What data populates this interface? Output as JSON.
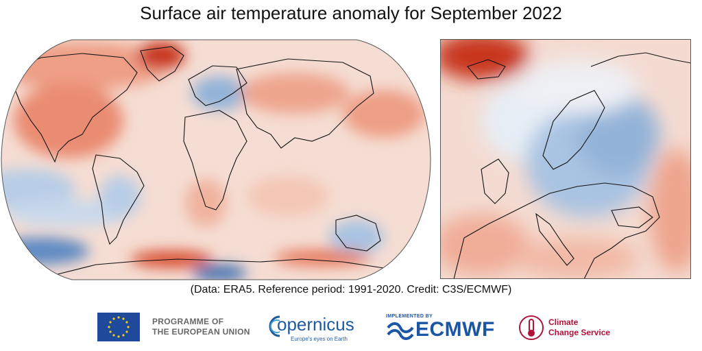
{
  "title": "Surface air temperature anomaly for September 2022",
  "credit": "(Data: ERA5.  Reference period: 1991-2020.  Credit: C3S/ECMWF)",
  "colors": {
    "warm_strong": "#c8361d",
    "warm_mid": "#e8836a",
    "warm_light": "#f6cbbd",
    "neutral": "#f7f2f0",
    "cool_light": "#d5e2f0",
    "cool_mid": "#93b3d8",
    "cool_strong": "#3f6fb0",
    "coastline": "#111111"
  },
  "footer": {
    "eu_line1": "PROGRAMME OF",
    "eu_line2": "THE EUROPEAN UNION",
    "copernicus_word": "opernicus",
    "copernicus_tagline": "Europe's eyes on Earth",
    "ecmwf_implemented": "IMPLEMENTED BY",
    "ecmwf_word": "ECMWF",
    "c3s_line1": "Climate",
    "c3s_line2": "Change Service"
  }
}
